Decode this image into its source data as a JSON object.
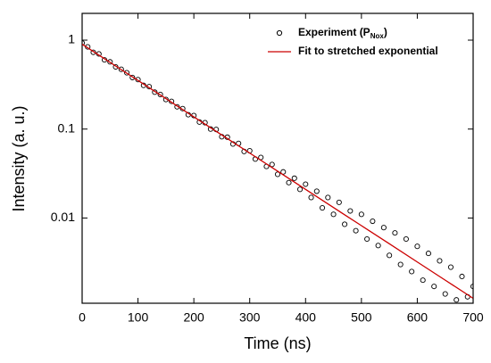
{
  "chart_data": {
    "type": "scatter",
    "xlabel": "Time (ns)",
    "ylabel": "Intensity (a. u.)",
    "xlim": [
      0,
      700
    ],
    "xticks": [
      0,
      100,
      200,
      300,
      400,
      500,
      600,
      700
    ],
    "ylim": [
      0.0011,
      2.0
    ],
    "yticks": [
      1,
      0.1,
      0.01
    ],
    "log_y": true,
    "legend": "upper right",
    "series": [
      {
        "type": "scatter",
        "name": "Experiment (P",
        "name_sub": "Nox",
        "name_end": ")",
        "color": "#000000",
        "x": [
          0,
          10,
          20,
          30,
          40,
          50,
          60,
          70,
          80,
          90,
          100,
          110,
          120,
          130,
          140,
          150,
          160,
          170,
          180,
          190,
          200,
          210,
          220,
          230,
          240,
          250,
          260,
          270,
          280,
          290,
          300,
          310,
          320,
          330,
          340,
          350,
          360,
          370,
          380,
          390,
          400,
          410,
          420,
          430,
          440,
          450,
          460,
          470,
          480,
          490,
          500,
          510,
          520,
          530,
          540,
          550,
          560,
          570,
          580,
          590,
          600,
          610,
          620,
          630,
          640,
          650,
          660,
          670,
          680,
          690,
          700
        ],
        "values": [
          0.93,
          0.84,
          0.73,
          0.7,
          0.6,
          0.57,
          0.5,
          0.47,
          0.43,
          0.38,
          0.36,
          0.31,
          0.3,
          0.26,
          0.245,
          0.215,
          0.205,
          0.178,
          0.17,
          0.145,
          0.142,
          0.12,
          0.118,
          0.1,
          0.099,
          0.082,
          0.081,
          0.068,
          0.069,
          0.056,
          0.057,
          0.046,
          0.048,
          0.038,
          0.04,
          0.031,
          0.033,
          0.025,
          0.028,
          0.021,
          0.024,
          0.017,
          0.02,
          0.013,
          0.017,
          0.011,
          0.015,
          0.0085,
          0.012,
          0.0072,
          0.011,
          0.0058,
          0.0092,
          0.0049,
          0.0078,
          0.0038,
          0.0068,
          0.003,
          0.0058,
          0.0025,
          0.0048,
          0.002,
          0.004,
          0.0017,
          0.0033,
          0.0014,
          0.0028,
          0.0012,
          0.0022,
          0.0013,
          0.0017
        ]
      },
      {
        "type": "line",
        "name": "Fit to stretched exponential",
        "color": "#cc0000",
        "x": [
          0,
          50,
          100,
          150,
          200,
          250,
          300,
          350,
          400,
          450,
          500,
          550,
          600,
          650,
          700
        ],
        "values": [
          0.9,
          0.562,
          0.352,
          0.22,
          0.137,
          0.0859,
          0.0537,
          0.0336,
          0.021,
          0.0131,
          0.0082,
          0.00513,
          0.0032,
          0.002,
          0.00125
        ]
      }
    ]
  }
}
